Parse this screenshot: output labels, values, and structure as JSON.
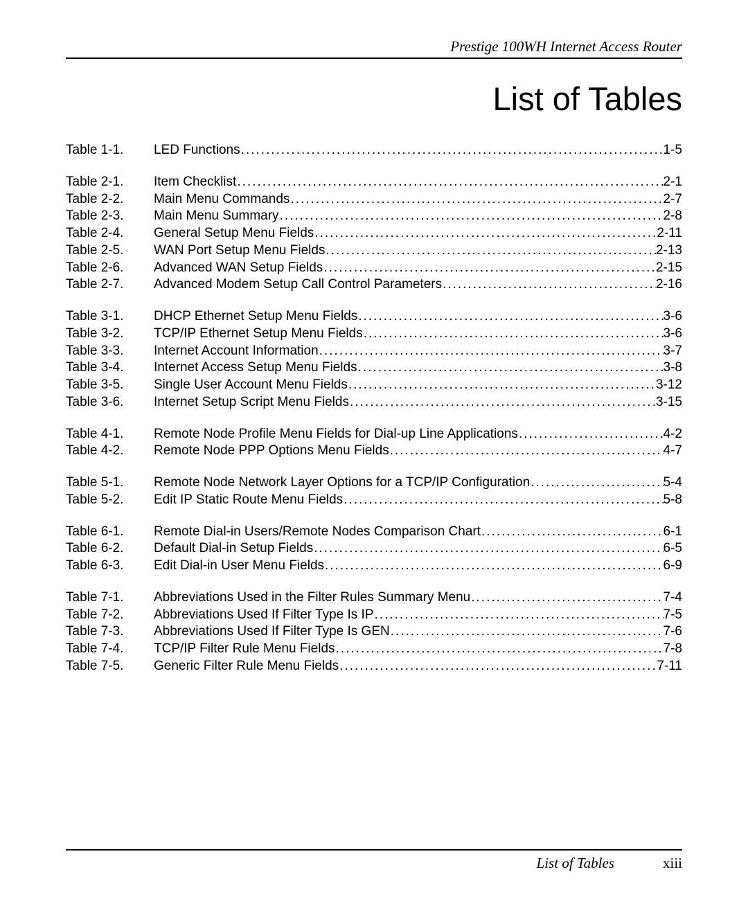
{
  "header": {
    "text": "Prestige 100WH Internet Access Router"
  },
  "title": "List of Tables",
  "sections": [
    {
      "entries": [
        {
          "label": "Table 1-1.",
          "title": "LED Functions",
          "page": "1-5"
        }
      ]
    },
    {
      "entries": [
        {
          "label": "Table 2-1.",
          "title": "Item Checklist ",
          "page": "2-1"
        },
        {
          "label": "Table 2-2.",
          "title": "Main Menu Commands ",
          "page": "2-7"
        },
        {
          "label": "Table 2-3.",
          "title": "Main Menu Summary ",
          "page": "2-8"
        },
        {
          "label": "Table 2-4.",
          "title": "General Setup Menu Fields ",
          "page": "2-11"
        },
        {
          "label": "Table 2-5.",
          "title": "WAN Port Setup Menu Fields ",
          "page": "2-13"
        },
        {
          "label": "Table 2-6.",
          "title": "Advanced WAN Setup Fields",
          "page": "2-15"
        },
        {
          "label": "Table 2-7.",
          "title": "Advanced Modem Setup Call Control Parameters ",
          "page": "2-16"
        }
      ]
    },
    {
      "entries": [
        {
          "label": "Table 3-1.",
          "title": "DHCP Ethernet Setup Menu Fields ",
          "page": "3-6"
        },
        {
          "label": "Table 3-2.",
          "title": "TCP/IP Ethernet Setup Menu Fields ",
          "page": "3-6"
        },
        {
          "label": "Table 3-3.",
          "title": "Internet Account Information",
          "page": "3-7"
        },
        {
          "label": "Table 3-4.",
          "title": "Internet Access Setup Menu Fields ",
          "page": "3-8"
        },
        {
          "label": "Table 3-5.",
          "title": "Single User Account Menu Fields ",
          "page": "3-12"
        },
        {
          "label": "Table 3-6.",
          "title": "Internet Setup Script Menu Fields",
          "page": "3-15"
        }
      ]
    },
    {
      "entries": [
        {
          "label": "Table 4-1.",
          "title": "Remote Node Profile Menu Fields for Dial-up Line Applications ",
          "page": "4-2"
        },
        {
          "label": "Table 4-2.",
          "title": "Remote Node PPP Options Menu Fields ",
          "page": "4-7"
        }
      ]
    },
    {
      "entries": [
        {
          "label": "Table 5-1.",
          "title": "Remote Node Network Layer Options for a TCP/IP Configuration",
          "page": "5-4"
        },
        {
          "label": "Table 5-2.",
          "title": "Edit IP Static Route Menu Fields ",
          "page": "5-8"
        }
      ]
    },
    {
      "entries": [
        {
          "label": "Table 6-1.",
          "title": "Remote Dial-in Users/Remote Nodes Comparison Chart ",
          "page": "6-1"
        },
        {
          "label": "Table 6-2.",
          "title": "Default Dial-in Setup Fields ",
          "page": "6-5"
        },
        {
          "label": "Table 6-3.",
          "title": "Edit Dial-in User Menu Fields ",
          "page": "6-9"
        }
      ]
    },
    {
      "entries": [
        {
          "label": "Table 7-1.",
          "title": "Abbreviations Used in the Filter Rules Summary Menu",
          "page": "7-4"
        },
        {
          "label": "Table 7-2.",
          "title": "Abbreviations Used If Filter Type Is IP ",
          "page": "7-5"
        },
        {
          "label": "Table 7-3.",
          "title": "Abbreviations Used If Filter Type Is GEN",
          "page": "7-6"
        },
        {
          "label": "Table 7-4.",
          "title": "TCP/IP Filter Rule Menu Fields ",
          "page": "7-8"
        },
        {
          "label": "Table 7-5.",
          "title": "Generic Filter Rule Menu Fields",
          "page": "7-11"
        }
      ]
    }
  ],
  "footer": {
    "text": "List of Tables",
    "page": "xiii"
  },
  "leader_dots": "......................................................................................................................................................................................",
  "colors": {
    "background": "#ffffff",
    "text": "#000000",
    "rule": "#000000"
  },
  "typography": {
    "body_font": "Arial, Helvetica, sans-serif",
    "italic_font": "Times New Roman, Times, serif",
    "title_fontsize": 47,
    "body_fontsize": 19,
    "header_footer_fontsize": 21
  }
}
